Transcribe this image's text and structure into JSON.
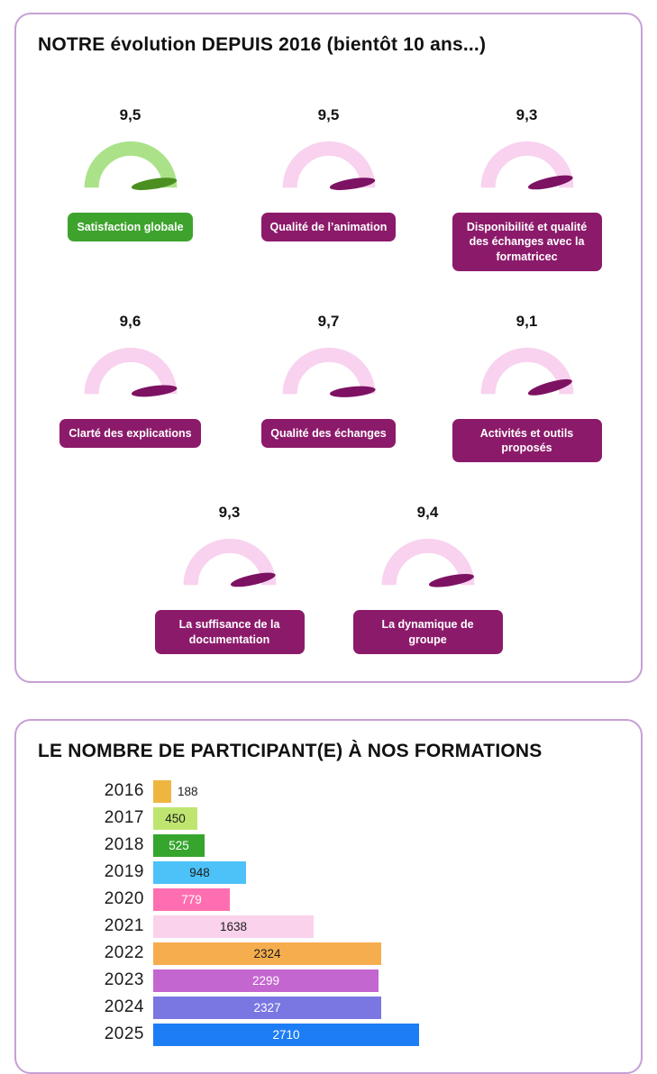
{
  "panel_evolution": {
    "title": "NOTRE évolution DEPUIS 2016 (bientôt 10 ans...)"
  },
  "panel_participants": {
    "title": "LE NOMBRE DE PARTICIPANT(E) À NOS FORMATIONS"
  },
  "chart_data": [
    {
      "type": "gauge",
      "title": "NOTRE évolution DEPUIS 2016 (bientôt 10 ans...)",
      "scale_min": 0,
      "scale_max": 10,
      "items": [
        {
          "label": "Satisfaction globale",
          "value": 9.5,
          "value_label": "9,5",
          "theme": "green"
        },
        {
          "label": "Qualité de l’animation",
          "value": 9.5,
          "value_label": "9,5",
          "theme": "purple"
        },
        {
          "label": "Disponibilité et qualité des échanges avec la formatricec",
          "value": 9.3,
          "value_label": "9,3",
          "theme": "purple"
        },
        {
          "label": "Clarté des explications",
          "value": 9.6,
          "value_label": "9,6",
          "theme": "purple"
        },
        {
          "label": "Qualité des échanges",
          "value": 9.7,
          "value_label": "9,7",
          "theme": "purple"
        },
        {
          "label": "Activités et outils proposés",
          "value": 9.1,
          "value_label": "9,1",
          "theme": "purple"
        },
        {
          "label": "La suffisance de la documentation",
          "value": 9.3,
          "value_label": "9,3",
          "theme": "purple"
        },
        {
          "label": "La dynamique de groupe",
          "value": 9.4,
          "value_label": "9,4",
          "theme": "purple"
        }
      ]
    },
    {
      "type": "bar",
      "orientation": "horizontal",
      "title": "LE NOMBRE DE PARTICIPANT(E) À NOS FORMATIONS",
      "categories": [
        "2016",
        "2017",
        "2018",
        "2019",
        "2020",
        "2021",
        "2022",
        "2023",
        "2024",
        "2025"
      ],
      "values": [
        188,
        450,
        525,
        948,
        779,
        1638,
        2324,
        2299,
        2327,
        2710
      ],
      "xlim": [
        0,
        2710
      ],
      "grid": false,
      "legend": false,
      "bar_colors": [
        "#eeb63f",
        "#bfe571",
        "#35a52e",
        "#4cc2f8",
        "#ff6eb0",
        "#fad2ec",
        "#f6ad4e",
        "#c466d0",
        "#7a77e2",
        "#1d7df4"
      ],
      "value_text_colors": [
        "#1d1d1d",
        "#1d1d1d",
        "#ffffff",
        "#1d1d1d",
        "#ffffff",
        "#1d1d1d",
        "#1d1d1d",
        "#ffffff",
        "#ffffff",
        "#ffffff"
      ],
      "value_label_position": [
        "outside",
        "inside",
        "inside",
        "inside",
        "inside",
        "inside",
        "inside",
        "inside",
        "inside",
        "inside"
      ]
    }
  ],
  "colors": {
    "card_border": "#c79fd4",
    "pink_arc": "#f8d2ee",
    "purple_needle": "#7d1263",
    "purple_label_bg": "#8c1a6a",
    "green_arc": "#abe289",
    "green_needle": "#4c8f21",
    "green_label_bg": "#3ea32d",
    "text": "#1a1a1a"
  }
}
